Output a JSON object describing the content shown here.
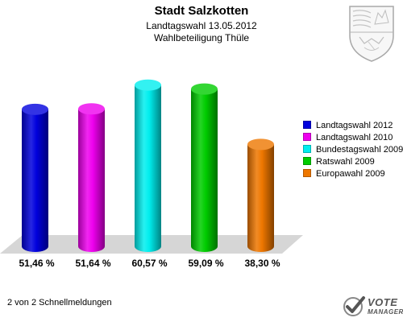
{
  "header": {
    "title": "Stadt Salzkotten",
    "subtitle_line1": "Landtagswahl 13.05.2012",
    "subtitle_line2": "Wahlbeteiligung Thüle"
  },
  "chart_data": {
    "type": "bar",
    "title": "Stadt Salzkotten",
    "subtitle": "Landtagswahl 13.05.2012 — Wahlbeteiligung Thüle",
    "categories": [
      "Landtagswahl 2012",
      "Landtagswahl 2010",
      "Bundestagswahl 2009",
      "Ratswahl 2009",
      "Europawahl 2009"
    ],
    "values": [
      51.46,
      51.64,
      60.57,
      59.09,
      38.3
    ],
    "value_labels": [
      "51,46 %",
      "51,64 %",
      "60,57 %",
      "59,09 %",
      "38,30 %"
    ],
    "colors": [
      "#0000dd",
      "#ee00ee",
      "#00eeee",
      "#00cc00",
      "#ee7700"
    ],
    "ylim": [
      0,
      75
    ],
    "legend_position": "right",
    "style": "3d-cylinders",
    "grid": false
  },
  "footer": {
    "note": "2 von 2 Schnellmeldungen"
  },
  "logo": {
    "line1": "VOTE",
    "line2": "MANAGER",
    "icon": "checkmark-icon"
  },
  "coat_of_arms": {
    "icon": "coat-of-arms-icon"
  }
}
